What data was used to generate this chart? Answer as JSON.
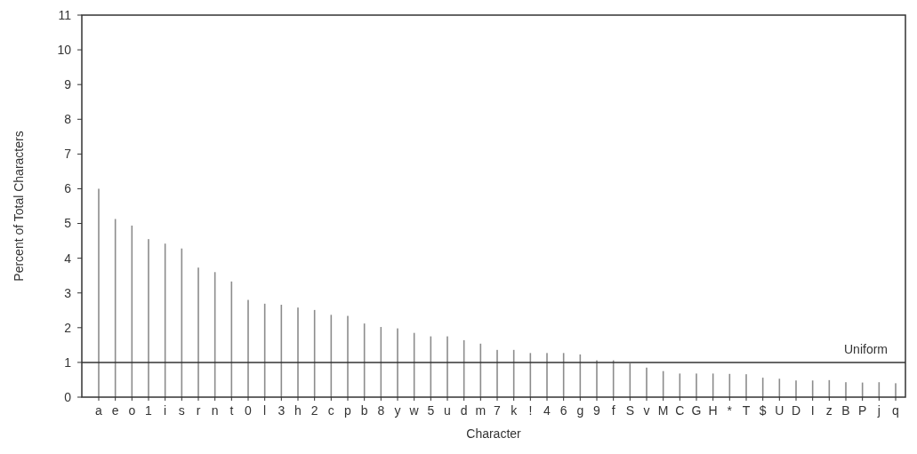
{
  "chart_data": {
    "type": "bar",
    "xlabel": "Character",
    "ylabel": "Percent of Total Characters",
    "categories": [
      "a",
      "e",
      "o",
      "1",
      "i",
      "s",
      "r",
      "n",
      "t",
      "0",
      "l",
      "3",
      "h",
      "2",
      "c",
      "p",
      "b",
      "8",
      "y",
      "w",
      "5",
      "u",
      "d",
      "m",
      "7",
      "k",
      "!",
      "4",
      "6",
      "g",
      "9",
      "f",
      "S",
      "v",
      "M",
      "C",
      "G",
      "H",
      "*",
      "T",
      "$",
      "U",
      "D",
      "I",
      "z",
      "B",
      "P",
      "j",
      "q"
    ],
    "values": [
      6.0,
      5.13,
      4.94,
      4.55,
      4.42,
      4.28,
      3.73,
      3.6,
      3.33,
      2.8,
      2.69,
      2.66,
      2.58,
      2.51,
      2.37,
      2.34,
      2.12,
      2.02,
      1.98,
      1.85,
      1.75,
      1.75,
      1.64,
      1.54,
      1.36,
      1.36,
      1.27,
      1.27,
      1.27,
      1.23,
      1.06,
      1.06,
      0.97,
      0.85,
      0.75,
      0.68,
      0.68,
      0.68,
      0.67,
      0.66,
      0.56,
      0.53,
      0.48,
      0.48,
      0.49,
      0.43,
      0.42,
      0.43,
      0.4
    ],
    "color": "#8c8c8c",
    "ylim": [
      0,
      11
    ],
    "yticks": [
      0,
      1,
      2,
      3,
      4,
      5,
      6,
      7,
      8,
      9,
      10,
      11
    ],
    "grid": false,
    "ref_lines": [
      {
        "axis": "y",
        "value": 1,
        "label": "Uniform",
        "color": "#333333"
      }
    ]
  }
}
